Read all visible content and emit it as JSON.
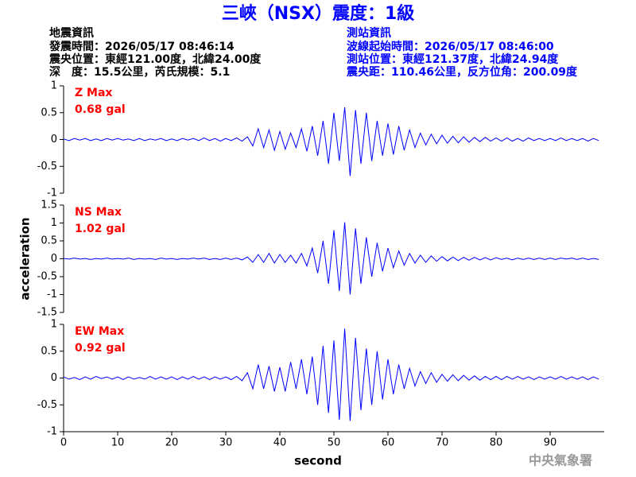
{
  "header": {
    "title": "三峽（NSX）震度：1級",
    "left": [
      "地震資訊",
      "發震時間：2026/05/17 08:46:14",
      "震央位置：東經121.00度，北緯24.00度",
      "深　度：15.5公里，芮氏規模：5.1"
    ],
    "right": [
      "測站資訊",
      "波線起始時間：2026/05/17 08:46:00",
      "測站位置：東經121.37度，北緯24.94度",
      "震央距：110.46公里，反方位角：200.09度"
    ]
  },
  "footer": "中央氣象署",
  "chart_data": [
    {
      "type": "line",
      "annotation": [
        "Z Max",
        "0.68 gal"
      ],
      "color": "#0000ff",
      "xlim": [
        0,
        100
      ],
      "ylim": [
        -1,
        1
      ],
      "yticks": [
        1,
        0.5,
        0,
        -0.5,
        -1
      ],
      "x": [
        0,
        1,
        2,
        3,
        4,
        5,
        6,
        7,
        8,
        9,
        10,
        11,
        12,
        13,
        14,
        15,
        16,
        17,
        18,
        19,
        20,
        21,
        22,
        23,
        24,
        25,
        26,
        27,
        28,
        29,
        30,
        31,
        32,
        33,
        34,
        35,
        36,
        37,
        38,
        39,
        40,
        41,
        42,
        43,
        44,
        45,
        46,
        47,
        48,
        49,
        50,
        51,
        52,
        53,
        54,
        55,
        56,
        57,
        58,
        59,
        60,
        61,
        62,
        63,
        64,
        65,
        66,
        67,
        68,
        69,
        70,
        71,
        72,
        73,
        74,
        75,
        76,
        77,
        78,
        79,
        80,
        81,
        82,
        83,
        84,
        85,
        86,
        87,
        88,
        89,
        90,
        91,
        92,
        93,
        94,
        95,
        96,
        97,
        98,
        99
      ],
      "values": [
        0.01,
        -0.02,
        0.02,
        -0.01,
        0.02,
        -0.02,
        0.01,
        -0.02,
        0.02,
        -0.01,
        0.02,
        -0.01,
        0.01,
        -0.02,
        0.02,
        -0.02,
        0.01,
        -0.01,
        0.02,
        -0.02,
        0.01,
        -0.02,
        0.02,
        -0.01,
        0.02,
        -0.02,
        0.03,
        -0.02,
        0.02,
        -0.03,
        0.02,
        -0.02,
        0.03,
        -0.03,
        0.05,
        -0.12,
        0.2,
        -0.15,
        0.18,
        -0.2,
        0.15,
        -0.18,
        0.12,
        -0.15,
        0.2,
        -0.22,
        0.25,
        -0.3,
        0.35,
        -0.45,
        0.5,
        -0.4,
        0.6,
        -0.68,
        0.55,
        -0.45,
        0.5,
        -0.4,
        0.35,
        -0.3,
        0.3,
        -0.28,
        0.25,
        -0.2,
        0.18,
        -0.15,
        0.12,
        -0.1,
        0.1,
        -0.08,
        0.08,
        -0.07,
        0.06,
        -0.06,
        0.05,
        -0.05,
        0.04,
        -0.04,
        0.04,
        -0.03,
        0.03,
        -0.03,
        0.03,
        -0.03,
        0.02,
        -0.03,
        0.03,
        -0.02,
        0.02,
        -0.02,
        0.02,
        -0.02,
        0.03,
        -0.02,
        0.02,
        -0.02,
        0.02,
        -0.03,
        0.02,
        -0.02
      ]
    },
    {
      "type": "line",
      "annotation": [
        "NS Max",
        "1.02 gal"
      ],
      "color": "#0000ff",
      "ylabel": "acceleration",
      "xlim": [
        0,
        100
      ],
      "ylim": [
        -1.5,
        1.5
      ],
      "yticks": [
        1.5,
        1,
        0.5,
        0,
        -0.5,
        -1,
        -1.5
      ],
      "x": [
        0,
        1,
        2,
        3,
        4,
        5,
        6,
        7,
        8,
        9,
        10,
        11,
        12,
        13,
        14,
        15,
        16,
        17,
        18,
        19,
        20,
        21,
        22,
        23,
        24,
        25,
        26,
        27,
        28,
        29,
        30,
        31,
        32,
        33,
        34,
        35,
        36,
        37,
        38,
        39,
        40,
        41,
        42,
        43,
        44,
        45,
        46,
        47,
        48,
        49,
        50,
        51,
        52,
        53,
        54,
        55,
        56,
        57,
        58,
        59,
        60,
        61,
        62,
        63,
        64,
        65,
        66,
        67,
        68,
        69,
        70,
        71,
        72,
        73,
        74,
        75,
        76,
        77,
        78,
        79,
        80,
        81,
        82,
        83,
        84,
        85,
        86,
        87,
        88,
        89,
        90,
        91,
        92,
        93,
        94,
        95,
        96,
        97,
        98,
        99
      ],
      "values": [
        0.01,
        -0.01,
        0.02,
        -0.01,
        0.01,
        -0.02,
        0.01,
        -0.01,
        0.02,
        -0.01,
        0.01,
        -0.01,
        0.02,
        -0.02,
        0.01,
        -0.01,
        0.01,
        -0.02,
        0.02,
        -0.01,
        0.01,
        -0.02,
        0.01,
        -0.01,
        0.02,
        -0.01,
        0.02,
        -0.02,
        0.01,
        -0.02,
        0.02,
        -0.02,
        0.02,
        -0.03,
        0.05,
        -0.1,
        0.12,
        -0.1,
        0.15,
        -0.12,
        0.12,
        -0.1,
        0.1,
        -0.12,
        0.15,
        -0.2,
        0.3,
        -0.4,
        0.5,
        -0.7,
        0.8,
        -0.9,
        1.02,
        -1.0,
        0.85,
        -0.7,
        0.6,
        -0.5,
        0.45,
        -0.35,
        0.3,
        -0.25,
        0.22,
        -0.18,
        0.15,
        -0.12,
        0.1,
        -0.1,
        0.08,
        -0.07,
        0.06,
        -0.06,
        0.05,
        -0.05,
        0.04,
        -0.04,
        0.04,
        -0.03,
        0.03,
        -0.03,
        0.03,
        -0.02,
        0.02,
        -0.03,
        0.02,
        -0.02,
        0.02,
        -0.02,
        0.02,
        -0.02,
        0.02,
        -0.02,
        0.02,
        -0.01,
        0.02,
        -0.02,
        0.02,
        -0.02,
        0.01,
        -0.02
      ]
    },
    {
      "type": "line",
      "annotation": [
        "EW Max",
        "0.92 gal"
      ],
      "color": "#0000ff",
      "xlabel": "second",
      "xlim": [
        0,
        100
      ],
      "ylim": [
        -1,
        1
      ],
      "yticks": [
        1,
        0.5,
        0,
        -0.5,
        -1
      ],
      "xticks": [
        0,
        10,
        20,
        30,
        40,
        50,
        60,
        70,
        80,
        90
      ],
      "x": [
        0,
        1,
        2,
        3,
        4,
        5,
        6,
        7,
        8,
        9,
        10,
        11,
        12,
        13,
        14,
        15,
        16,
        17,
        18,
        19,
        20,
        21,
        22,
        23,
        24,
        25,
        26,
        27,
        28,
        29,
        30,
        31,
        32,
        33,
        34,
        35,
        36,
        37,
        38,
        39,
        40,
        41,
        42,
        43,
        44,
        45,
        46,
        47,
        48,
        49,
        50,
        51,
        52,
        53,
        54,
        55,
        56,
        57,
        58,
        59,
        60,
        61,
        62,
        63,
        64,
        65,
        66,
        67,
        68,
        69,
        70,
        71,
        72,
        73,
        74,
        75,
        76,
        77,
        78,
        79,
        80,
        81,
        82,
        83,
        84,
        85,
        86,
        87,
        88,
        89,
        90,
        91,
        92,
        93,
        94,
        95,
        96,
        97,
        98,
        99
      ],
      "values": [
        0.02,
        -0.02,
        0.01,
        -0.03,
        0.02,
        -0.02,
        0.03,
        -0.01,
        0.02,
        -0.02,
        0.02,
        -0.03,
        0.02,
        -0.02,
        0.01,
        -0.02,
        0.03,
        -0.02,
        0.02,
        -0.02,
        0.02,
        -0.03,
        0.02,
        -0.02,
        0.03,
        -0.02,
        0.02,
        -0.03,
        0.02,
        -0.02,
        0.02,
        -0.03,
        0.03,
        -0.05,
        0.1,
        -0.2,
        0.25,
        -0.2,
        0.22,
        -0.25,
        0.2,
        -0.25,
        0.3,
        -0.2,
        0.35,
        -0.3,
        0.4,
        -0.5,
        0.6,
        -0.65,
        0.7,
        -0.78,
        0.92,
        -0.8,
        0.75,
        -0.6,
        0.55,
        -0.5,
        0.5,
        -0.4,
        0.35,
        -0.3,
        0.25,
        -0.2,
        0.18,
        -0.15,
        0.12,
        -0.1,
        0.1,
        -0.08,
        0.07,
        -0.06,
        0.06,
        -0.05,
        0.05,
        -0.04,
        0.04,
        -0.04,
        0.03,
        -0.03,
        0.03,
        -0.03,
        0.03,
        -0.02,
        0.03,
        -0.02,
        0.02,
        -0.03,
        0.02,
        -0.02,
        0.02,
        -0.02,
        0.03,
        -0.02,
        0.02,
        -0.02,
        0.02,
        -0.03,
        0.02,
        -0.02
      ]
    }
  ]
}
